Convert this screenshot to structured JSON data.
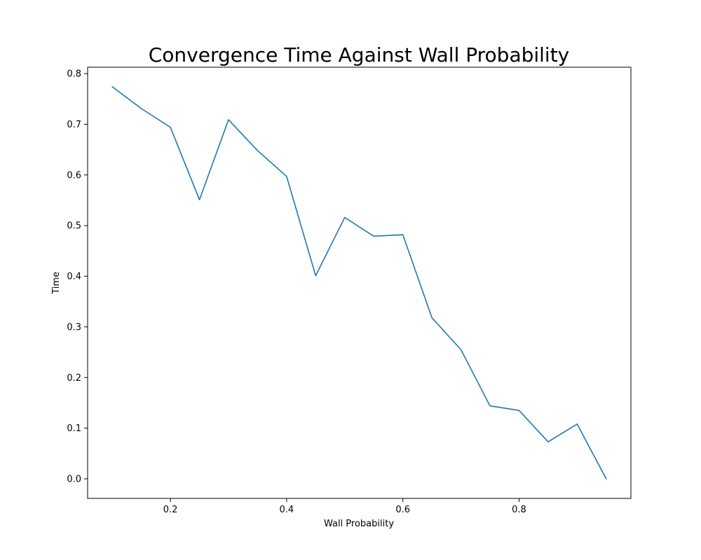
{
  "chart_data": {
    "type": "line",
    "title": "Convergence Time Against Wall Probability",
    "xlabel": "Wall Probability",
    "ylabel": "Time",
    "xlim": [
      0.0575,
      0.9925
    ],
    "ylim": [
      -0.0387,
      0.8127
    ],
    "xticks": [
      0.2,
      0.4,
      0.6,
      0.8
    ],
    "xtick_labels": [
      "0.2",
      "0.4",
      "0.6",
      "0.8"
    ],
    "yticks": [
      0.0,
      0.1,
      0.2,
      0.3,
      0.4,
      0.5,
      0.6,
      0.7,
      0.8
    ],
    "ytick_labels": [
      "0.0",
      "0.1",
      "0.2",
      "0.3",
      "0.4",
      "0.5",
      "0.6",
      "0.7",
      "0.8"
    ],
    "grid": false,
    "series": [
      {
        "color": "#1f77b4",
        "x": [
          0.1,
          0.15,
          0.2,
          0.25,
          0.3,
          0.35,
          0.4,
          0.45,
          0.5,
          0.55,
          0.6,
          0.65,
          0.7,
          0.75,
          0.8,
          0.85,
          0.9,
          0.95
        ],
        "y": [
          0.774,
          0.731,
          0.694,
          0.551,
          0.709,
          0.648,
          0.597,
          0.401,
          0.516,
          0.479,
          0.482,
          0.318,
          0.255,
          0.144,
          0.135,
          0.073,
          0.108,
          0.0
        ]
      }
    ]
  }
}
